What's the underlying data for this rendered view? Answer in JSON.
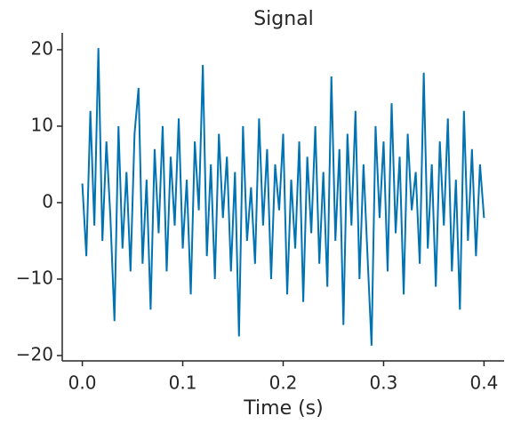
{
  "chart_data": {
    "type": "line",
    "title": "Signal",
    "x_label": "Time (s)",
    "x": [
      0,
      0.004,
      0.008,
      0.012,
      0.016,
      0.02,
      0.024,
      0.028,
      0.032,
      0.036,
      0.04,
      0.044,
      0.048,
      0.052,
      0.056,
      0.06,
      0.064,
      0.068,
      0.072,
      0.076,
      0.08,
      0.084,
      0.088,
      0.092,
      0.096,
      0.1,
      0.104,
      0.108,
      0.112,
      0.116,
      0.12,
      0.124,
      0.128,
      0.132,
      0.136,
      0.14,
      0.144,
      0.148,
      0.152,
      0.156,
      0.16,
      0.164,
      0.168,
      0.172,
      0.176,
      0.18,
      0.184,
      0.188,
      0.192,
      0.196,
      0.2,
      0.204,
      0.208,
      0.212,
      0.216,
      0.22,
      0.224,
      0.228,
      0.232,
      0.236,
      0.24,
      0.244,
      0.248,
      0.252,
      0.256,
      0.26,
      0.264,
      0.268,
      0.272,
      0.276,
      0.28,
      0.284,
      0.288,
      0.292,
      0.296,
      0.3,
      0.304,
      0.308,
      0.312,
      0.316,
      0.32,
      0.324,
      0.328,
      0.332,
      0.336,
      0.34,
      0.344,
      0.348,
      0.352,
      0.356,
      0.36,
      0.364,
      0.368,
      0.372,
      0.376,
      0.38,
      0.384,
      0.388,
      0.392,
      0.396,
      0.4
    ],
    "series": [
      {
        "color": "#0173b2",
        "values": [
          2.5,
          -7,
          12,
          -3,
          20.2,
          -5,
          8,
          -2,
          -15.5,
          10,
          -6,
          4,
          -9,
          9,
          15,
          -8,
          3,
          -14,
          7,
          -4,
          10,
          -9,
          6,
          -3,
          11,
          -6,
          3,
          -12,
          8,
          -1,
          18,
          -7,
          5,
          -10,
          9,
          -2,
          6,
          -9,
          4,
          -17.5,
          10,
          -5,
          2,
          -8,
          11,
          -3,
          7,
          -10,
          5,
          -1,
          9,
          -12,
          3,
          -6,
          8,
          -13,
          6,
          -4,
          10,
          -8,
          4,
          -11,
          16.5,
          -5,
          7,
          -16,
          9,
          -3,
          12,
          -10,
          5,
          -7,
          -18.7,
          10,
          -2,
          8,
          -9,
          13,
          -4,
          6,
          -12,
          9,
          -1,
          4,
          -8,
          17,
          -6,
          5,
          -11,
          8,
          -3,
          11,
          -9,
          3,
          -14,
          12,
          -5,
          7,
          -7,
          5,
          -2
        ]
      }
    ],
    "xlim": [
      -0.02,
      0.42
    ],
    "ylim": [
      -20.7,
      22.2
    ],
    "xticks": [
      {
        "value": 0,
        "label": "0.0"
      },
      0.1,
      0.2,
      0.3,
      0.4
    ],
    "yticks": [
      {
        "value": -20,
        "label": "−20"
      },
      {
        "value": -10,
        "label": "−10"
      },
      0,
      10,
      20
    ]
  }
}
